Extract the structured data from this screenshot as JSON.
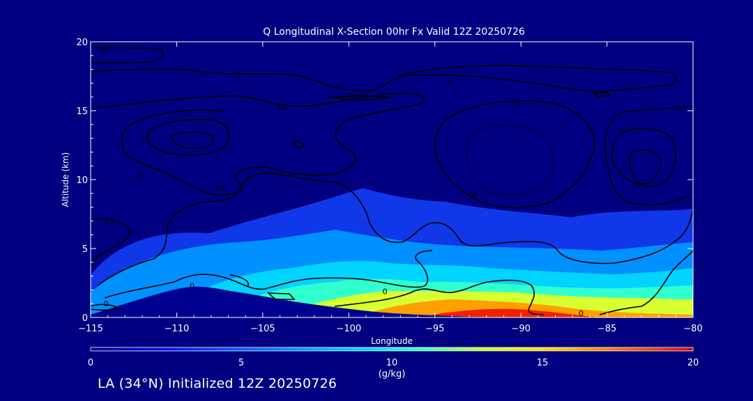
{
  "chart_data": {
    "type": "cross-section contour",
    "title": "Q Longitudinal X-Section 00hr  Fx Valid 12Z 20250726",
    "xlabel": "Longitude",
    "ylabel": "Altitude (km)",
    "xlim": [
      -115,
      -80
    ],
    "ylim": [
      0,
      20
    ],
    "xticks": [
      -115,
      -110,
      -105,
      -100,
      -95,
      -90,
      -85,
      -80
    ],
    "yticks": [
      0,
      5,
      10,
      15,
      20
    ],
    "colorbar": {
      "label": "(g/kg)",
      "min": 0,
      "max": 20,
      "ticks": [
        0,
        5,
        10,
        15,
        20
      ]
    },
    "contour_labels": [
      {
        "text": "0",
        "lon": -114.2,
        "alt": 19.5
      },
      {
        "text": "0",
        "lon": -106.4,
        "alt": 17.6
      },
      {
        "text": "0",
        "lon": -94.1,
        "alt": 17.1
      },
      {
        "text": "10",
        "lon": -103.9,
        "alt": 15.3
      },
      {
        "text": "10",
        "lon": -99.8,
        "alt": 16.0
      },
      {
        "text": "0",
        "lon": -90.2,
        "alt": 15.5
      },
      {
        "text": "0",
        "lon": -80.8,
        "alt": 15.2
      },
      {
        "text": "10",
        "lon": -111.8,
        "alt": 13.0
      },
      {
        "text": "0",
        "lon": -84.2,
        "alt": 13.5
      },
      {
        "text": "0",
        "lon": -112.1,
        "alt": 10.3
      },
      {
        "text": "10",
        "lon": -107.5,
        "alt": 9.4
      },
      {
        "text": "0",
        "lon": -92.7,
        "alt": 8.9
      },
      {
        "text": "10",
        "lon": -113.9,
        "alt": 7.0
      },
      {
        "text": "0",
        "lon": -109.1,
        "alt": 2.3
      },
      {
        "text": "0",
        "lon": -97.9,
        "alt": 1.9
      },
      {
        "text": "0",
        "lon": -114.1,
        "alt": 1.0
      },
      {
        "text": "0",
        "lon": -86.5,
        "alt": 0.3
      }
    ],
    "footer": "LA (34°N) Initialized 12Z 20250726"
  }
}
